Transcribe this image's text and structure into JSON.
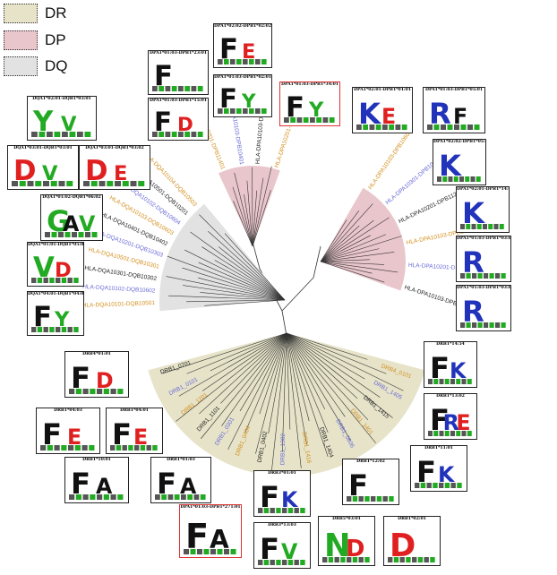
{
  "legend": [
    {
      "label": "DR",
      "color": "#e6e3c8"
    },
    {
      "label": "DP",
      "color": "#e9c6cc"
    },
    {
      "label": "DQ",
      "color": "#e2e2e2"
    }
  ],
  "colors": {
    "orange": "#d4901e",
    "blue": "#6a6ad8",
    "black": "#222222",
    "green": "#22aa22",
    "red": "#e02020",
    "navy": "#2233bb"
  },
  "logos": [
    {
      "title": "DPA1*02:02-DPB1*02:02",
      "letters": [
        "F",
        "E"
      ],
      "red": false
    },
    {
      "title": "DPA1*01:03-DPB1*23:01",
      "letters": [
        "F"
      ],
      "red": false
    },
    {
      "title": "DPA1*01:03-DPB1*02:01",
      "letters": [
        "F",
        "Y"
      ],
      "red": false
    },
    {
      "title": "DPA1*01:03-DPB1*15:01",
      "letters": [
        "F",
        "D"
      ],
      "red": false
    },
    {
      "title": "DPA1*01:03-DPB1*34:01",
      "letters": [
        "F",
        "Y"
      ],
      "red": true
    },
    {
      "title": "DQA1*02:01-DQB1*03:01",
      "letters": [
        "Y",
        "V"
      ],
      "red": false
    },
    {
      "title": "DQA1*03:01-DQB1*03:01",
      "letters": [
        "D",
        "V"
      ],
      "red": false
    },
    {
      "title": "DQA1*03:01-DQB1*03:02",
      "letters": [
        "D",
        "E"
      ],
      "red": false
    },
    {
      "title": "DQA1*01:02-DQB1*06:02",
      "letters": [
        "G",
        "A",
        "V"
      ],
      "red": false
    },
    {
      "title": "DQA1*01:01-DQB1*05:01",
      "letters": [
        "V",
        "D"
      ],
      "red": false
    },
    {
      "title": "DQA1*04:01-DQB1*04:02",
      "letters": [
        "F",
        "Y"
      ],
      "red": false
    },
    {
      "title": "DPA1*02:01-DPB1*01:01",
      "letters": [
        "K",
        "E"
      ],
      "red": false
    },
    {
      "title": "DPA1*01:03-DPB1*05:01",
      "letters": [
        "R",
        "F"
      ],
      "red": false
    },
    {
      "title": "DPA1*02:02-DPB1*05:01",
      "letters": [
        "K"
      ],
      "red": false
    },
    {
      "title": "DPA1*02:01-DPB1*14:01",
      "letters": [
        "K"
      ],
      "red": false
    },
    {
      "title": "DPA1*01:03-DPB1*03:01",
      "letters": [
        "R"
      ],
      "red": false
    },
    {
      "title": "DPA1*01:03-DPB1*03:01",
      "letters": [
        "R"
      ],
      "red": false
    },
    {
      "title": "DRB4*01:01",
      "letters": [
        "F",
        "D"
      ],
      "red": false
    },
    {
      "title": "DRB1*14:54",
      "letters": [
        "F",
        "K"
      ],
      "red": false
    },
    {
      "title": "DRB1*13:02",
      "letters": [
        "F",
        "R",
        "E"
      ],
      "red": false
    },
    {
      "title": "DRB1*04:01",
      "letters": [
        "F",
        "E"
      ],
      "red": false
    },
    {
      "title": "DRB1*04:03",
      "letters": [
        "F",
        "E"
      ],
      "red": false
    },
    {
      "title": "DRB1*11:01",
      "letters": [
        "F",
        "K"
      ],
      "red": false
    },
    {
      "title": "DRB1*10:01",
      "letters": [
        "F",
        "A"
      ],
      "red": false
    },
    {
      "title": "DRB1*01:03",
      "letters": [
        "F",
        "A"
      ],
      "red": false
    },
    {
      "title": "DRB3*01:01",
      "letters": [
        "F",
        "K"
      ],
      "red": false
    },
    {
      "title": "DRB1*12:02",
      "letters": [
        "F"
      ],
      "red": false
    },
    {
      "title": "DPA1*01:03-DPB1*271:01",
      "letters": [
        "F",
        "A"
      ],
      "red": true
    },
    {
      "title": "DRB3*13:03",
      "letters": [
        "F",
        "V"
      ],
      "red": false
    },
    {
      "title": "DRB5*03:01",
      "letters": [
        "N",
        "D"
      ],
      "red": false
    },
    {
      "title": "DRB1*02:01",
      "letters": [
        "D"
      ],
      "red": false
    }
  ],
  "leaf_labels": [
    {
      "text": "HLA-DPA10201-DPB11401",
      "group": "DP"
    },
    {
      "text": "HLA-DPA10103-DPB10401",
      "group": "DP"
    },
    {
      "text": "HLA-DPA10103-DPB10201",
      "group": "DP"
    },
    {
      "text": "HLA-DPA10201-DPB10101",
      "group": "DP"
    },
    {
      "text": "HLA-DPA10103-DPB10601",
      "group": "DP"
    },
    {
      "text": "HLA-DPA10301-DPB10402",
      "group": "DP"
    },
    {
      "text": "HLA-DPA10201-DPB11201",
      "group": "DP"
    },
    {
      "text": "HLA-DPA10103-DPB10301",
      "group": "DP"
    },
    {
      "text": "HLA-DPA10201-DPB10501",
      "group": "DP"
    },
    {
      "text": "HLA-DPA10103-DPB11301",
      "group": "DP"
    },
    {
      "text": "HLA-DQA10101-DQB10501",
      "group": "DQ"
    },
    {
      "text": "HLA-DQA10102-DQB10602",
      "group": "DQ"
    },
    {
      "text": "HLA-DQA10301-DQB10302",
      "group": "DQ"
    },
    {
      "text": "HLA-DQA10501-DQB10301",
      "group": "DQ"
    },
    {
      "text": "HLA-DQA10201-DQB10303",
      "group": "DQ"
    },
    {
      "text": "HLA-DQA10401-DQB10402",
      "group": "DQ"
    },
    {
      "text": "HLA-DQA10103-DQB10603",
      "group": "DQ"
    },
    {
      "text": "HLA-DQA10102-DQB10604",
      "group": "DQ"
    },
    {
      "text": "HLA-DQA10501-DQB10201",
      "group": "DQ"
    },
    {
      "text": "HLA-DQA10104-DQB10503",
      "group": "DQ"
    },
    {
      "text": "DRB4_0101",
      "group": "DR"
    },
    {
      "text": "DRB1_1405",
      "group": "DR"
    },
    {
      "text": "DRB1_1415",
      "group": "DR"
    },
    {
      "text": "DRB1_1401",
      "group": "DR"
    },
    {
      "text": "DRB1_0806",
      "group": "DR"
    },
    {
      "text": "DRB1_1404",
      "group": "DR"
    },
    {
      "text": "DRB1_1416",
      "group": "DR"
    },
    {
      "text": "DRB1_1302",
      "group": "DR"
    },
    {
      "text": "DRB1_0402",
      "group": "DR"
    },
    {
      "text": "DRB1_0404",
      "group": "DR"
    },
    {
      "text": "DRB1_0301",
      "group": "DR"
    },
    {
      "text": "DRB1_1101",
      "group": "DR"
    },
    {
      "text": "DRB1_1201",
      "group": "DR"
    },
    {
      "text": "DRB1_0101",
      "group": "DR"
    },
    {
      "text": "DRB1_0701",
      "group": "DR"
    }
  ]
}
